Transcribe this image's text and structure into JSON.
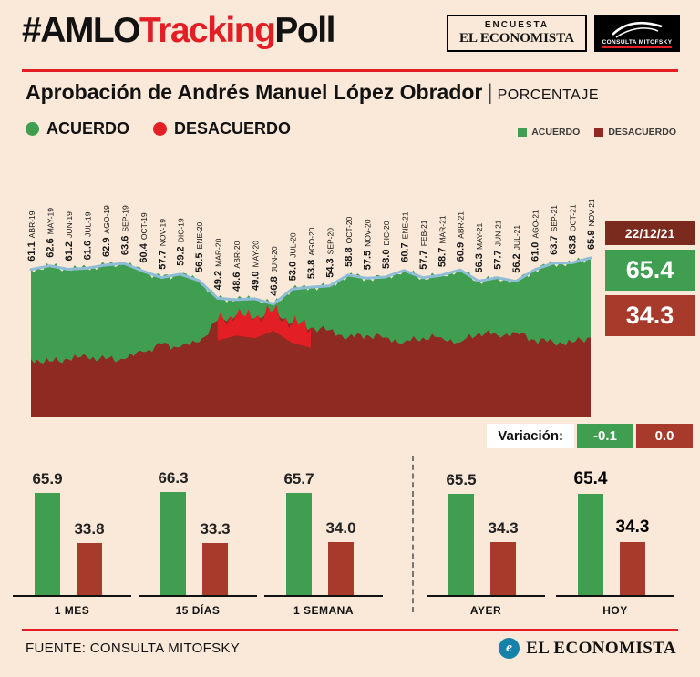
{
  "page": {
    "background": "#fae8d8",
    "accent_red": "#e31e24"
  },
  "header": {
    "hashtag": {
      "part1": "#AMLO",
      "part2": "Tracking",
      "part3": "Poll"
    },
    "encuesta_logo": {
      "line1": "ENCUESTA",
      "line2": "EL ECONOMISTA"
    },
    "mitofsky_logo": {
      "label": "CONSULTA MITOFSKY"
    }
  },
  "title": {
    "main": "Aprobación de Andrés Manuel López Obrador",
    "pipe": "|",
    "unit": "PORCENTAJE"
  },
  "legend_large": {
    "acuerdo": "ACUERDO",
    "desacuerdo": "DESACUERDO"
  },
  "legend_small": {
    "acuerdo": "ACUERDO",
    "desacuerdo": "DESACUERDO"
  },
  "chart_data": {
    "type": "area",
    "title": "Aprobación de Andrés Manuel López Obrador (porcentaje)",
    "categories": [
      "ABR-19",
      "MAY-19",
      "JUN-19",
      "JUL-19",
      "AGO-19",
      "SEP-19",
      "OCT-19",
      "NOV-19",
      "DIC-19",
      "ENE-20",
      "MAR-20",
      "ABR-20",
      "MAY-20",
      "JUN-20",
      "JUL-20",
      "AGO-20",
      "SEP-20",
      "OCT-20",
      "NOV-20",
      "DIC-20",
      "ENE-21",
      "FEB-21",
      "MAR-21",
      "ABR-21",
      "MAY-21",
      "JUN-21",
      "JUL-21",
      "AGO-21",
      "SEP-21",
      "OCT-21",
      "NOV-21"
    ],
    "series": [
      {
        "name": "ACUERDO",
        "color": "#3f9e4f",
        "values": [
          61.1,
          62.6,
          61.2,
          61.6,
          62.9,
          63.6,
          60.4,
          57.7,
          59.2,
          56.5,
          49.2,
          48.6,
          49.0,
          46.8,
          53.0,
          53.8,
          54.3,
          58.8,
          57.5,
          58.0,
          60.7,
          57.7,
          58.7,
          60.9,
          56.3,
          57.7,
          56.2,
          61.0,
          63.7,
          63.8,
          65.9
        ]
      },
      {
        "name": "DESACUERDO",
        "color": "#8e2a22",
        "estimated": true,
        "values": [
          24,
          23,
          24,
          25,
          24,
          24,
          27,
          30,
          29,
          31,
          40,
          42,
          41,
          44,
          39,
          37,
          36,
          33,
          34,
          33,
          31,
          33,
          33,
          31,
          35,
          34,
          35,
          32,
          31,
          31,
          33
        ]
      }
    ],
    "line_color": "#8fbdd8",
    "spike_color": "#e31e24",
    "ylim": [
      0,
      70
    ],
    "notes": "ACUERDO values labeled on rotated axis labels; DESACUERDO area read from pixels (estimated); light-blue line traces ACUERDO; bright-red spikes around MAR-20 to AGO-20"
  },
  "summary": {
    "date": "22/12/21",
    "acuerdo": "65.4",
    "desacuerdo": "34.3"
  },
  "variation": {
    "label": "Variación:",
    "acuerdo": "-0.1",
    "desacuerdo": "0.0"
  },
  "bars": {
    "groups": [
      {
        "label": "1 MES",
        "acuerdo": "65.9",
        "desacuerdo": "33.8",
        "bold": false
      },
      {
        "label": "15 DÍAS",
        "acuerdo": "66.3",
        "desacuerdo": "33.3",
        "bold": false
      },
      {
        "label": "1 SEMANA",
        "acuerdo": "65.7",
        "desacuerdo": "34.0",
        "bold": false
      },
      {
        "label": "AYER",
        "acuerdo": "65.5",
        "desacuerdo": "34.3",
        "bold": false
      },
      {
        "label": "HOY",
        "acuerdo": "65.4",
        "desacuerdo": "34.3",
        "bold": true
      }
    ]
  },
  "footer": {
    "source": "FUENTE: CONSULTA MITOFSKY",
    "brand": "EL ECONOMISTA",
    "brand_icon": "e"
  }
}
